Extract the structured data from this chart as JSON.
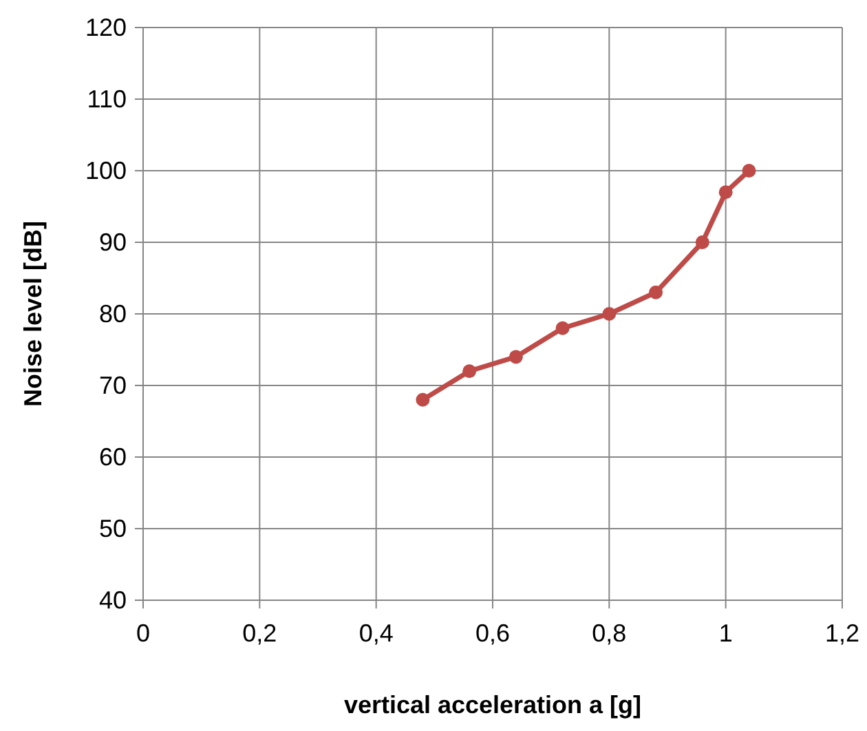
{
  "chart_data": {
    "type": "line",
    "xlabel": "vertical acceleration a [g]",
    "ylabel": "Noise level [dB]",
    "x": [
      0.48,
      0.56,
      0.64,
      0.72,
      0.8,
      0.88,
      0.96,
      1.0,
      1.04
    ],
    "series": [
      {
        "color": "#be4b48",
        "values": [
          68,
          72,
          74,
          78,
          80,
          83,
          90,
          97,
          100
        ]
      }
    ],
    "xlim": [
      0,
      1.2
    ],
    "xticks": [
      0,
      {
        "value": 0.2,
        "label": "0,2"
      },
      {
        "value": 0.4,
        "label": "0,4"
      },
      {
        "value": 0.6,
        "label": "0,6"
      },
      {
        "value": 0.8,
        "label": "0,8"
      },
      1,
      {
        "value": 1.2,
        "label": "1,2"
      }
    ],
    "ylim": [
      40,
      120
    ],
    "yticks": [
      40,
      50,
      60,
      70,
      80,
      90,
      100,
      110,
      120
    ],
    "grid": true,
    "marker": "circle",
    "line_style": "solid"
  }
}
